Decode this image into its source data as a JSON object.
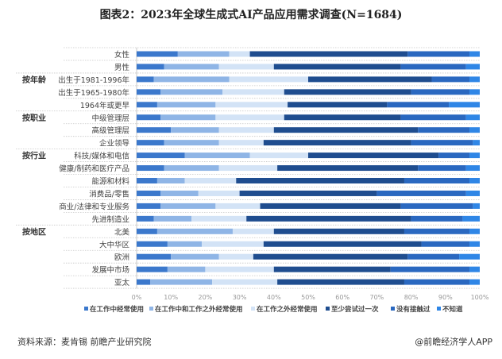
{
  "title": "图表2：2023年全球生成式AI产品应用需求调查(N=1684)",
  "footer": {
    "source": "资料来源：麦肯锡 前瞻产业研究院",
    "brand": "@前瞻经济学人APP"
  },
  "chart_data": {
    "type": "bar",
    "orientation": "horizontal",
    "stacked": true,
    "xlim": [
      0,
      100
    ],
    "x_ticks": [
      "0%",
      "10%",
      "20%",
      "30%",
      "40%",
      "50%",
      "60%",
      "70%",
      "80%",
      "90%",
      "100%"
    ],
    "grid": "dotted horizontal separators",
    "legend_position": "bottom",
    "groups": [
      {
        "label": "",
        "start": 0
      },
      {
        "label": "按年龄",
        "start": 2
      },
      {
        "label": "按职业",
        "start": 5
      },
      {
        "label": "按行业",
        "start": 8
      },
      {
        "label": "按地区",
        "start": 14
      }
    ],
    "categories": [
      "女性",
      "男性",
      "出生于1981-1996年",
      "出生于1965-1980年",
      "1964年或更早",
      "中级管理层",
      "高级管理层",
      "企业领导",
      "科技/媒体和电信",
      "健康/制药和医疗产品",
      "能源和材料",
      "消费品/零售",
      "商业/法律和专业服务",
      "先进制造业",
      "北美",
      "大中华区",
      "欧洲",
      "发展中市场",
      "亚太"
    ],
    "series": [
      {
        "name": "在工作中经常使用",
        "color": "#3b78cc",
        "values": [
          12,
          8,
          5,
          7,
          6,
          7,
          10,
          8,
          14,
          8,
          6,
          7,
          7,
          5,
          6,
          9,
          10,
          9,
          4
        ]
      },
      {
        "name": "在工作中和工作之外经常使用",
        "color": "#8fb5e6",
        "values": [
          15,
          16,
          22,
          18,
          17,
          16,
          14,
          16,
          19,
          16,
          8,
          11,
          16,
          11,
          22,
          10,
          14,
          11,
          18
        ]
      },
      {
        "name": "在工作之外经常使用",
        "color": "#d3e3f6",
        "values": [
          6,
          16,
          23,
          18,
          21,
          20,
          16,
          13,
          17,
          17,
          15,
          12,
          13,
          16,
          12,
          18,
          10,
          20,
          19
        ]
      },
      {
        "name": "至少尝试过一次",
        "color": "#1f4d8f",
        "values": [
          46,
          37,
          36,
          37,
          29,
          34,
          42,
          43,
          38,
          41,
          49,
          40,
          41,
          48,
          38,
          46,
          45,
          34,
          37
        ]
      },
      {
        "name": "没有接触过",
        "color": "#2a68c0",
        "values": [
          18,
          19,
          11,
          17,
          18,
          19,
          15,
          18,
          9,
          14,
          19,
          26,
          21,
          15,
          19,
          14,
          15,
          23,
          19
        ]
      },
      {
        "name": "不知道",
        "color": "#2f86e6",
        "values": [
          3,
          4,
          3,
          3,
          9,
          4,
          3,
          2,
          3,
          4,
          3,
          4,
          2,
          5,
          3,
          3,
          6,
          3,
          3
        ]
      }
    ]
  }
}
